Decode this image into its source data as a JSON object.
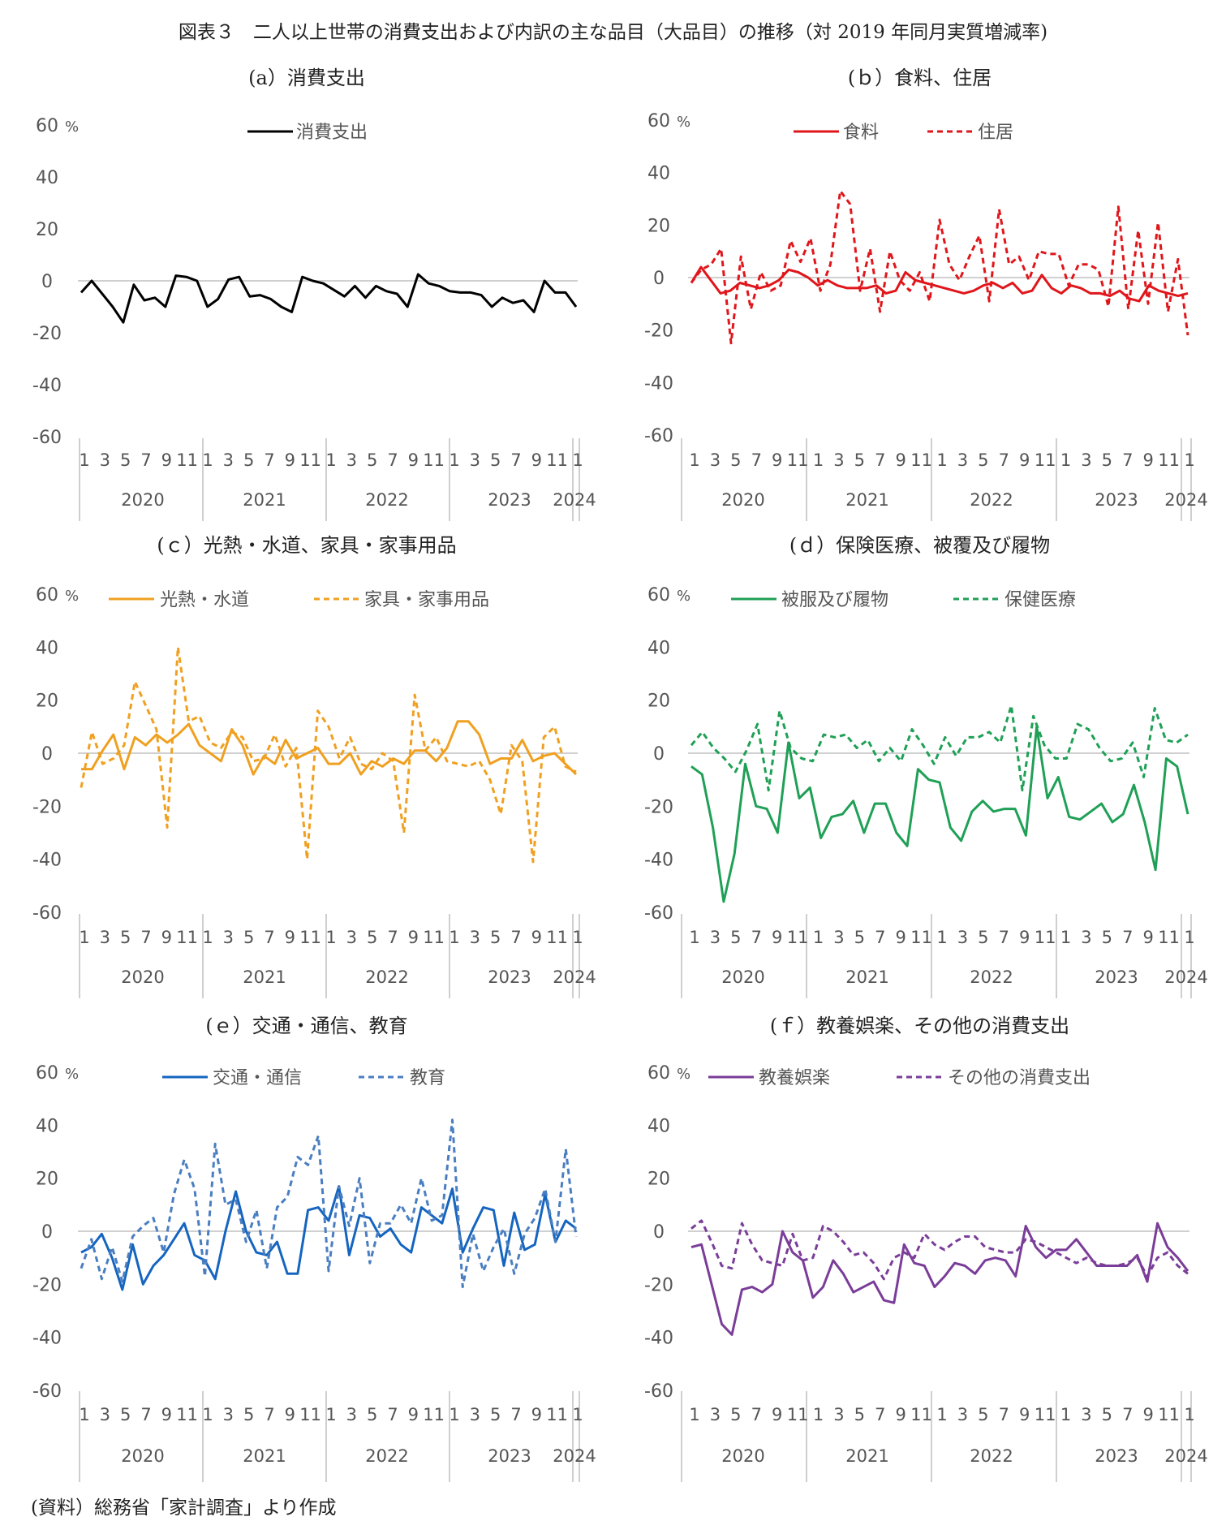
{
  "title": "図表３　二人以上世帯の消費支出および内訳の主な品目（大品目）の推移（対 2019 年同月実質増減率)",
  "source": "(資料）総務省「家計調査」より作成",
  "unit": "%",
  "chart_data": [
    {
      "type": "line",
      "title": "(a）消費支出",
      "ylim": [
        -60,
        60
      ],
      "yticks": [
        60,
        40,
        20,
        0,
        -20,
        -40,
        -60
      ],
      "x_month_labels": [
        "1",
        "3",
        "5",
        "7",
        "9",
        "11",
        "1",
        "3",
        "5",
        "7",
        "9",
        "11",
        "1",
        "3",
        "5",
        "7",
        "9",
        "11",
        "1",
        "3",
        "5",
        "7",
        "9",
        "11",
        "1"
      ],
      "x_year_labels": [
        "2020",
        "2021",
        "2022",
        "2023",
        "2024"
      ],
      "legend_position": "top-center",
      "grid": false,
      "series": [
        {
          "name": "消費支出",
          "color": "#000000",
          "dash": "solid",
          "values": [
            -4.5,
            0,
            -5,
            -10,
            -16,
            -1.5,
            -7.5,
            -6.5,
            -10,
            2,
            1.5,
            0,
            -10,
            -7,
            0.5,
            1.5,
            -6,
            -5.5,
            -7,
            -10,
            -12,
            1.5,
            0,
            -1,
            -3.5,
            -6,
            -2,
            -6.5,
            -2,
            -4,
            -5,
            -10,
            2.5,
            -1,
            -2,
            -4,
            -4.5,
            -4.5,
            -5.5,
            -10,
            -6.5,
            -8.5,
            -7.5,
            -12,
            0,
            -4.5,
            -4.5,
            -10
          ]
        }
      ]
    },
    {
      "type": "line",
      "title": "(ｂ）食料、住居",
      "ylim": [
        -60,
        60
      ],
      "yticks": [
        60,
        40,
        20,
        0,
        -20,
        -40,
        -60
      ],
      "x_month_labels": [
        "1",
        "3",
        "5",
        "7",
        "9",
        "11",
        "1",
        "3",
        "5",
        "7",
        "9",
        "11",
        "1",
        "3",
        "5",
        "7",
        "9",
        "11",
        "1",
        "3",
        "5",
        "7",
        "9",
        "11",
        "1"
      ],
      "x_year_labels": [
        "2020",
        "2021",
        "2022",
        "2023",
        "2024"
      ],
      "legend_position": "top-center",
      "grid": false,
      "series": [
        {
          "name": "食料",
          "color": "#E0161B",
          "dash": "solid",
          "values": [
            -2,
            4,
            -1,
            -6,
            -5,
            -2,
            -3,
            -4,
            -3,
            -1,
            3,
            2,
            0,
            -3,
            -1,
            -3,
            -4,
            -4,
            -4,
            -3,
            -6,
            -5,
            2,
            -1,
            -2,
            -3,
            -4,
            -5,
            -6,
            -5,
            -3,
            -2,
            -4,
            -2,
            -6,
            -5,
            1,
            -4,
            -6,
            -3,
            -4,
            -6,
            -6,
            -7,
            -5,
            -8,
            -9,
            -3,
            -5,
            -6,
            -7,
            -6
          ]
        },
        {
          "name": "住居",
          "color": "#E0161B",
          "dash": "dashed",
          "values": [
            -2,
            3,
            5,
            11,
            -25,
            8,
            -12,
            2,
            -5,
            -3,
            14,
            6,
            15,
            -5,
            5,
            33,
            28,
            -5,
            11,
            -13,
            10,
            -1,
            -5,
            2,
            -9,
            22,
            5,
            -1,
            8,
            16,
            -9,
            26,
            5,
            8,
            -1,
            10,
            9,
            9,
            -3,
            5,
            5,
            3,
            -11,
            27,
            -12,
            18,
            -10,
            21,
            -13,
            7,
            -22
          ]
        }
      ]
    },
    {
      "type": "line",
      "title": "(ｃ）光熱・水道、家具・家事用品",
      "ylim": [
        -60,
        60
      ],
      "yticks": [
        60,
        40,
        20,
        0,
        -20,
        -40,
        -60
      ],
      "x_month_labels": [
        "1",
        "3",
        "5",
        "7",
        "9",
        "11",
        "1",
        "3",
        "5",
        "7",
        "9",
        "11",
        "1",
        "3",
        "5",
        "7",
        "9",
        "11",
        "1",
        "3",
        "5",
        "7",
        "9",
        "11",
        "1"
      ],
      "x_year_labels": [
        "2020",
        "2021",
        "2022",
        "2023",
        "2024"
      ],
      "legend_position": "top-center",
      "grid": false,
      "series": [
        {
          "name": "光熱・水道",
          "color": "#F0A020",
          "dash": "solid",
          "values": [
            -6,
            -6,
            1,
            7,
            -6,
            6,
            3,
            7,
            4,
            7,
            11,
            3,
            0,
            -3,
            9,
            3,
            -8,
            -1,
            -4,
            5,
            -2,
            0,
            2,
            -4,
            -4,
            0,
            -8,
            -3,
            -5,
            -2,
            -4,
            1,
            1,
            -3,
            2,
            12,
            12,
            7,
            -4,
            -2,
            -2,
            5,
            -3,
            -1,
            0,
            -4,
            -8
          ]
        },
        {
          "name": "家具・家事用品",
          "color": "#F0A020",
          "dash": "dashed",
          "values": [
            -13,
            8,
            -4,
            -2,
            3,
            27,
            18,
            9,
            -28,
            40,
            12,
            14,
            4,
            2,
            8,
            6,
            -3,
            -2,
            7,
            -5,
            2,
            -40,
            16,
            10,
            -2,
            6,
            -4,
            -6,
            0,
            -3,
            -30,
            22,
            1,
            6,
            -3,
            -4,
            -5,
            -3,
            -10,
            -23,
            3,
            -3,
            -41,
            6,
            10,
            -5,
            -7
          ]
        }
      ]
    },
    {
      "type": "line",
      "title": "(ｄ）保険医療、被覆及び履物",
      "ylim": [
        -60,
        60
      ],
      "yticks": [
        60,
        40,
        20,
        0,
        -20,
        -40,
        -60
      ],
      "x_month_labels": [
        "1",
        "3",
        "5",
        "7",
        "9",
        "11",
        "1",
        "3",
        "5",
        "7",
        "9",
        "11",
        "1",
        "3",
        "5",
        "7",
        "9",
        "11",
        "1",
        "3",
        "5",
        "7",
        "9",
        "11",
        "1"
      ],
      "x_year_labels": [
        "2020",
        "2021",
        "2022",
        "2023",
        "2024"
      ],
      "legend_position": "top-center",
      "grid": false,
      "series": [
        {
          "name": "被服及び履物",
          "color": "#1FA056",
          "dash": "solid",
          "values": [
            -5,
            -8,
            -28,
            -56,
            -38,
            -4,
            -20,
            -21,
            -30,
            4,
            -17,
            -13,
            -32,
            -24,
            -23,
            -18,
            -30,
            -19,
            -19,
            -30,
            -35,
            -6,
            -10,
            -11,
            -28,
            -33,
            -22,
            -18,
            -22,
            -21,
            -21,
            -31,
            10,
            -17,
            -9,
            -24,
            -25,
            -22,
            -19,
            -26,
            -23,
            -12,
            -26,
            -44,
            -2,
            -5,
            -23
          ]
        },
        {
          "name": "保健医療",
          "color": "#1FA056",
          "dash": "dashed",
          "values": [
            3,
            8,
            2,
            -2,
            -7,
            1,
            11,
            -14,
            16,
            2,
            -2,
            -3,
            7,
            6,
            7,
            2,
            5,
            -3,
            2,
            -3,
            9,
            3,
            -4,
            6,
            -1,
            6,
            6,
            8,
            4,
            18,
            -14,
            14,
            3,
            -2,
            -2,
            11,
            9,
            2,
            -3,
            -2,
            4,
            -9,
            17,
            5,
            4,
            7
          ]
        }
      ]
    },
    {
      "type": "line",
      "title": "(ｅ）交通・通信、教育",
      "ylim": [
        -60,
        60
      ],
      "yticks": [
        60,
        40,
        20,
        0,
        -20,
        -40,
        -60
      ],
      "x_month_labels": [
        "1",
        "3",
        "5",
        "7",
        "9",
        "11",
        "1",
        "3",
        "5",
        "7",
        "9",
        "11",
        "1",
        "3",
        "5",
        "7",
        "9",
        "11",
        "1",
        "3",
        "5",
        "7",
        "9",
        "11",
        "1"
      ],
      "x_year_labels": [
        "2020",
        "2021",
        "2022",
        "2023",
        "2024"
      ],
      "legend_position": "top-center",
      "grid": false,
      "series": [
        {
          "name": "交通・通信",
          "color": "#1565C0",
          "dash": "solid",
          "values": [
            -8,
            -6,
            -1,
            -10,
            -22,
            -5,
            -20,
            -13,
            -9,
            -3,
            3,
            -9,
            -11,
            -18,
            0,
            15,
            0,
            -8,
            -9,
            -4,
            -16,
            -16,
            8,
            9,
            4,
            17,
            -9,
            6,
            5,
            -2,
            1,
            -5,
            -8,
            9,
            6,
            3,
            16,
            -8,
            1,
            9,
            8,
            -13,
            7,
            -7,
            -5,
            14,
            -4,
            4,
            1
          ]
        },
        {
          "name": "教育",
          "color": "#4A7EC0",
          "dash": "dashed",
          "values": [
            -14,
            -3,
            -18,
            -6,
            -19,
            -2,
            2,
            5,
            -8,
            14,
            27,
            16,
            -17,
            33,
            10,
            12,
            -4,
            8,
            -14,
            9,
            13,
            28,
            25,
            36,
            -15,
            17,
            2,
            20,
            -12,
            3,
            3,
            10,
            3,
            20,
            4,
            6,
            42,
            -21,
            -1,
            -15,
            -6,
            1,
            -16,
            -1,
            5,
            16,
            -4,
            31,
            -2
          ]
        }
      ]
    },
    {
      "type": "line",
      "title": "(ｆ）教養娯楽、その他の消費支出",
      "ylim": [
        -60,
        60
      ],
      "yticks": [
        60,
        40,
        20,
        0,
        -20,
        -40,
        -60
      ],
      "x_month_labels": [
        "1",
        "3",
        "5",
        "7",
        "9",
        "11",
        "1",
        "3",
        "5",
        "7",
        "9",
        "11",
        "1",
        "3",
        "5",
        "7",
        "9",
        "11",
        "1",
        "3",
        "5",
        "7",
        "9",
        "11",
        "1"
      ],
      "x_year_labels": [
        "2020",
        "2021",
        "2022",
        "2023",
        "2024"
      ],
      "legend_position": "top-center",
      "grid": false,
      "series": [
        {
          "name": "教養娯楽",
          "color": "#7A3D98",
          "dash": "solid",
          "values": [
            -6,
            -5,
            -20,
            -35,
            -39,
            -22,
            -21,
            -23,
            -20,
            0,
            -8,
            -11,
            -25,
            -21,
            -11,
            -16,
            -23,
            -21,
            -19,
            -26,
            -27,
            -5,
            -12,
            -13,
            -21,
            -17,
            -12,
            -13,
            -16,
            -11,
            -10,
            -11,
            -17,
            2,
            -6,
            -10,
            -7,
            -7,
            -3,
            -8,
            -13,
            -13,
            -13,
            -13,
            -9,
            -19,
            3,
            -6,
            -10,
            -15
          ]
        },
        {
          "name": "その他の消費支出",
          "color": "#7A3D98",
          "dash": "dashed",
          "values": [
            1,
            4,
            -4,
            -13,
            -14,
            3,
            -5,
            -11,
            -12,
            -13,
            -1,
            -11,
            -10,
            2,
            0,
            -4,
            -9,
            -8,
            -12,
            -18,
            -10,
            -8,
            -10,
            -1,
            -5,
            -7,
            -4,
            -2,
            -2,
            -6,
            -7,
            -8,
            -8,
            -3,
            -4,
            -6,
            -8,
            -10,
            -12,
            -10,
            -12,
            -13,
            -13,
            -12,
            -10,
            -17,
            -10,
            -8,
            -13,
            -16
          ]
        }
      ]
    }
  ]
}
